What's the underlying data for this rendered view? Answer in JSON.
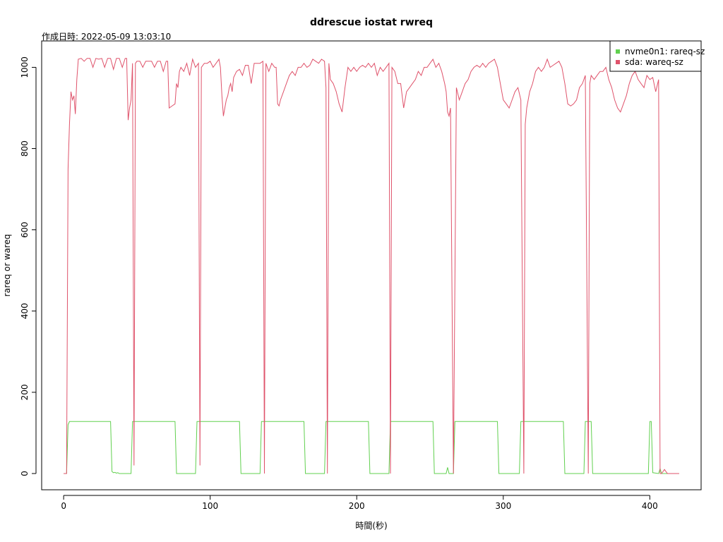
{
  "chart_data": {
    "type": "line",
    "title": "ddrescue iostat rwreq",
    "subtitle": "作成日時: 2022-05-09 13:03:10",
    "xlabel": "時間(秒)",
    "ylabel": "rareq or wareq",
    "xlim": [
      -15,
      435
    ],
    "ylim": [
      -40,
      1065
    ],
    "x_ticks": [
      0,
      100,
      200,
      300,
      400
    ],
    "y_ticks": [
      0,
      200,
      400,
      600,
      800,
      1000
    ],
    "grid": false,
    "legend_position": "top-right",
    "series": [
      {
        "name": "nvme0n1: rareq-sz",
        "color": "#61D04F",
        "points": [
          [
            0,
            0
          ],
          [
            2,
            0
          ],
          [
            3,
            120
          ],
          [
            4,
            128
          ],
          [
            32,
            128
          ],
          [
            33,
            5
          ],
          [
            34,
            2
          ],
          [
            35,
            3
          ],
          [
            36,
            1
          ],
          [
            37,
            2
          ],
          [
            38,
            0
          ],
          [
            46,
            0
          ],
          [
            47,
            128
          ],
          [
            76,
            128
          ],
          [
            77,
            0
          ],
          [
            90,
            0
          ],
          [
            91,
            128
          ],
          [
            120,
            128
          ],
          [
            121,
            0
          ],
          [
            134,
            0
          ],
          [
            135,
            128
          ],
          [
            164,
            128
          ],
          [
            165,
            0
          ],
          [
            178,
            0
          ],
          [
            179,
            128
          ],
          [
            208,
            128
          ],
          [
            209,
            0
          ],
          [
            222,
            0
          ],
          [
            223,
            128
          ],
          [
            252,
            128
          ],
          [
            253,
            0
          ],
          [
            261,
            0
          ],
          [
            262,
            15
          ],
          [
            263,
            0
          ],
          [
            266,
            0
          ],
          [
            267,
            128
          ],
          [
            296,
            128
          ],
          [
            297,
            0
          ],
          [
            311,
            0
          ],
          [
            312,
            128
          ],
          [
            341,
            128
          ],
          [
            342,
            0
          ],
          [
            355,
            0
          ],
          [
            356,
            128
          ],
          [
            360,
            128
          ],
          [
            361,
            0
          ],
          [
            399,
            0
          ],
          [
            400,
            128
          ],
          [
            401,
            128
          ],
          [
            402,
            2
          ],
          [
            406,
            0
          ],
          [
            407,
            12
          ],
          [
            408,
            0
          ],
          [
            420,
            0
          ]
        ]
      },
      {
        "name": "sda: wareq-sz",
        "color": "#DF536B",
        "points": [
          [
            0,
            0
          ],
          [
            2,
            0
          ],
          [
            3,
            750
          ],
          [
            4,
            860
          ],
          [
            5,
            940
          ],
          [
            6,
            920
          ],
          [
            7,
            930
          ],
          [
            8,
            885
          ],
          [
            9,
            970
          ],
          [
            10,
            1020
          ],
          [
            12,
            1022
          ],
          [
            14,
            1015
          ],
          [
            16,
            1022
          ],
          [
            18,
            1022
          ],
          [
            20,
            1000
          ],
          [
            22,
            1022
          ],
          [
            24,
            1020
          ],
          [
            26,
            1022
          ],
          [
            28,
            1000
          ],
          [
            30,
            1022
          ],
          [
            32,
            1022
          ],
          [
            34,
            995
          ],
          [
            36,
            1022
          ],
          [
            38,
            1022
          ],
          [
            40,
            1000
          ],
          [
            42,
            1022
          ],
          [
            43,
            1022
          ],
          [
            44,
            870
          ],
          [
            45,
            900
          ],
          [
            46,
            920
          ],
          [
            47,
            1010
          ],
          [
            48,
            20
          ],
          [
            49,
            1010
          ],
          [
            50,
            1015
          ],
          [
            52,
            1015
          ],
          [
            54,
            1000
          ],
          [
            56,
            1015
          ],
          [
            58,
            1015
          ],
          [
            60,
            1015
          ],
          [
            62,
            1000
          ],
          [
            64,
            1015
          ],
          [
            66,
            1015
          ],
          [
            68,
            990
          ],
          [
            70,
            1015
          ],
          [
            71,
            1015
          ],
          [
            72,
            900
          ],
          [
            74,
            905
          ],
          [
            76,
            910
          ],
          [
            77,
            960
          ],
          [
            78,
            950
          ],
          [
            79,
            990
          ],
          [
            80,
            1000
          ],
          [
            82,
            990
          ],
          [
            84,
            1010
          ],
          [
            86,
            980
          ],
          [
            88,
            1020
          ],
          [
            90,
            1000
          ],
          [
            92,
            1010
          ],
          [
            93,
            20
          ],
          [
            94,
            1000
          ],
          [
            96,
            1010
          ],
          [
            98,
            1010
          ],
          [
            100,
            1015
          ],
          [
            102,
            1000
          ],
          [
            104,
            1010
          ],
          [
            106,
            1020
          ],
          [
            107,
            1000
          ],
          [
            108,
            930
          ],
          [
            109,
            880
          ],
          [
            110,
            900
          ],
          [
            111,
            920
          ],
          [
            112,
            930
          ],
          [
            113,
            950
          ],
          [
            114,
            960
          ],
          [
            115,
            940
          ],
          [
            116,
            975
          ],
          [
            118,
            990
          ],
          [
            120,
            995
          ],
          [
            122,
            980
          ],
          [
            124,
            1005
          ],
          [
            126,
            1005
          ],
          [
            128,
            960
          ],
          [
            130,
            1010
          ],
          [
            132,
            1010
          ],
          [
            134,
            1010
          ],
          [
            136,
            1015
          ],
          [
            137,
            0
          ],
          [
            138,
            1010
          ],
          [
            140,
            990
          ],
          [
            142,
            1010
          ],
          [
            144,
            1000
          ],
          [
            145,
            1000
          ],
          [
            146,
            910
          ],
          [
            147,
            905
          ],
          [
            148,
            920
          ],
          [
            150,
            940
          ],
          [
            152,
            960
          ],
          [
            154,
            980
          ],
          [
            156,
            990
          ],
          [
            158,
            980
          ],
          [
            160,
            1000
          ],
          [
            162,
            1000
          ],
          [
            164,
            1010
          ],
          [
            166,
            1000
          ],
          [
            168,
            1005
          ],
          [
            170,
            1020
          ],
          [
            172,
            1015
          ],
          [
            174,
            1010
          ],
          [
            176,
            1020
          ],
          [
            178,
            1015
          ],
          [
            179,
            950
          ],
          [
            180,
            0
          ],
          [
            181,
            1010
          ],
          [
            182,
            970
          ],
          [
            184,
            960
          ],
          [
            186,
            940
          ],
          [
            188,
            910
          ],
          [
            190,
            890
          ],
          [
            192,
            950
          ],
          [
            194,
            1000
          ],
          [
            196,
            990
          ],
          [
            198,
            1000
          ],
          [
            200,
            990
          ],
          [
            202,
            1000
          ],
          [
            204,
            1005
          ],
          [
            206,
            1000
          ],
          [
            208,
            1010
          ],
          [
            210,
            1000
          ],
          [
            212,
            1010
          ],
          [
            214,
            980
          ],
          [
            216,
            1000
          ],
          [
            218,
            990
          ],
          [
            220,
            1000
          ],
          [
            222,
            1010
          ],
          [
            223,
            0
          ],
          [
            224,
            1000
          ],
          [
            226,
            990
          ],
          [
            228,
            960
          ],
          [
            230,
            960
          ],
          [
            232,
            900
          ],
          [
            234,
            940
          ],
          [
            236,
            950
          ],
          [
            238,
            960
          ],
          [
            240,
            970
          ],
          [
            242,
            990
          ],
          [
            244,
            980
          ],
          [
            246,
            1000
          ],
          [
            248,
            1000
          ],
          [
            250,
            1010
          ],
          [
            252,
            1020
          ],
          [
            254,
            1000
          ],
          [
            256,
            1010
          ],
          [
            258,
            990
          ],
          [
            260,
            960
          ],
          [
            261,
            940
          ],
          [
            262,
            890
          ],
          [
            263,
            880
          ],
          [
            264,
            900
          ],
          [
            266,
            0
          ],
          [
            268,
            950
          ],
          [
            270,
            920
          ],
          [
            272,
            940
          ],
          [
            274,
            960
          ],
          [
            276,
            970
          ],
          [
            278,
            990
          ],
          [
            280,
            1000
          ],
          [
            282,
            1005
          ],
          [
            284,
            1000
          ],
          [
            286,
            1010
          ],
          [
            288,
            1000
          ],
          [
            290,
            1010
          ],
          [
            292,
            1015
          ],
          [
            294,
            1020
          ],
          [
            296,
            1000
          ],
          [
            298,
            960
          ],
          [
            300,
            920
          ],
          [
            302,
            910
          ],
          [
            304,
            900
          ],
          [
            306,
            920
          ],
          [
            308,
            940
          ],
          [
            310,
            950
          ],
          [
            312,
            920
          ],
          [
            314,
            0
          ],
          [
            315,
            860
          ],
          [
            316,
            900
          ],
          [
            318,
            940
          ],
          [
            320,
            960
          ],
          [
            322,
            990
          ],
          [
            324,
            1000
          ],
          [
            326,
            990
          ],
          [
            328,
            1000
          ],
          [
            330,
            1020
          ],
          [
            332,
            1000
          ],
          [
            334,
            1005
          ],
          [
            336,
            1010
          ],
          [
            338,
            1015
          ],
          [
            340,
            1000
          ],
          [
            342,
            960
          ],
          [
            344,
            910
          ],
          [
            346,
            905
          ],
          [
            348,
            910
          ],
          [
            350,
            920
          ],
          [
            352,
            950
          ],
          [
            354,
            960
          ],
          [
            356,
            980
          ],
          [
            358,
            0
          ],
          [
            359,
            960
          ],
          [
            360,
            980
          ],
          [
            362,
            970
          ],
          [
            364,
            980
          ],
          [
            366,
            990
          ],
          [
            368,
            990
          ],
          [
            370,
            1000
          ],
          [
            372,
            970
          ],
          [
            374,
            950
          ],
          [
            376,
            920
          ],
          [
            378,
            900
          ],
          [
            380,
            890
          ],
          [
            382,
            910
          ],
          [
            384,
            930
          ],
          [
            386,
            960
          ],
          [
            388,
            980
          ],
          [
            390,
            990
          ],
          [
            392,
            970
          ],
          [
            394,
            960
          ],
          [
            396,
            950
          ],
          [
            398,
            980
          ],
          [
            400,
            970
          ],
          [
            402,
            975
          ],
          [
            404,
            940
          ],
          [
            406,
            970
          ],
          [
            407,
            0
          ],
          [
            408,
            0
          ],
          [
            410,
            10
          ],
          [
            412,
            0
          ],
          [
            420,
            0
          ]
        ]
      }
    ]
  }
}
